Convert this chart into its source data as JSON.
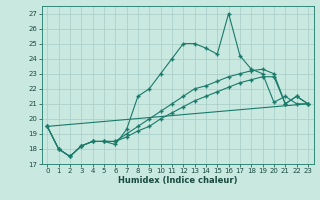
{
  "title": "",
  "xlabel": "Humidex (Indice chaleur)",
  "ylabel": "",
  "bg_color": "#c8e8e0",
  "grid_color": "#a8ccc8",
  "line_color": "#1a7a6a",
  "marker": "+",
  "xlim": [
    -0.5,
    23.5
  ],
  "ylim": [
    17,
    27.5
  ],
  "xticks": [
    0,
    1,
    2,
    3,
    4,
    5,
    6,
    7,
    8,
    9,
    10,
    11,
    12,
    13,
    14,
    15,
    16,
    17,
    18,
    19,
    20,
    21,
    22,
    23
  ],
  "yticks": [
    17,
    18,
    19,
    20,
    21,
    22,
    23,
    24,
    25,
    26,
    27
  ],
  "line1_x": [
    0,
    1,
    2,
    3,
    4,
    5,
    6,
    7,
    8,
    9,
    10,
    11,
    12,
    13,
    14,
    15,
    16,
    17,
    18,
    19,
    20,
    21,
    22,
    23
  ],
  "line1_y": [
    19.5,
    18.0,
    17.5,
    18.2,
    18.5,
    18.5,
    18.3,
    19.3,
    21.5,
    22.0,
    23.0,
    24.0,
    25.0,
    25.0,
    24.7,
    24.3,
    27.0,
    24.2,
    23.3,
    23.0,
    21.1,
    21.5,
    21.0,
    21.0
  ],
  "line2_x": [
    0,
    1,
    2,
    3,
    4,
    5,
    6,
    7,
    8,
    9,
    10,
    11,
    12,
    13,
    14,
    15,
    16,
    17,
    18,
    19,
    20,
    21,
    22,
    23
  ],
  "line2_y": [
    19.5,
    18.0,
    17.5,
    18.2,
    18.5,
    18.5,
    18.5,
    19.0,
    19.5,
    20.0,
    20.5,
    21.0,
    21.5,
    22.0,
    22.2,
    22.5,
    22.8,
    23.0,
    23.2,
    23.3,
    23.0,
    21.0,
    21.5,
    21.0
  ],
  "line3_x": [
    0,
    1,
    2,
    3,
    4,
    5,
    6,
    7,
    8,
    9,
    10,
    11,
    12,
    13,
    14,
    15,
    16,
    17,
    18,
    19,
    20,
    21,
    22,
    23
  ],
  "line3_y": [
    19.5,
    18.0,
    17.5,
    18.2,
    18.5,
    18.5,
    18.5,
    18.8,
    19.2,
    19.5,
    20.0,
    20.4,
    20.8,
    21.2,
    21.5,
    21.8,
    22.1,
    22.4,
    22.6,
    22.8,
    22.8,
    21.0,
    21.5,
    21.0
  ],
  "line4_x": [
    0,
    23
  ],
  "line4_y": [
    19.5,
    21.0
  ]
}
